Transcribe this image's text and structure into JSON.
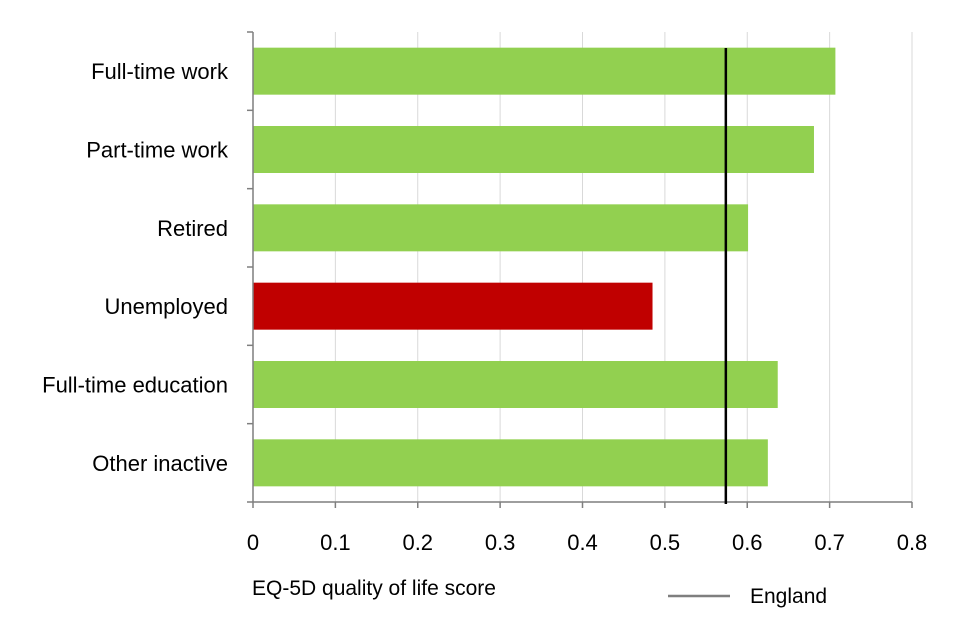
{
  "chart_data": {
    "type": "bar",
    "orientation": "horizontal",
    "categories": [
      "Full-time work",
      "Part-time work",
      "Retired",
      "Unemployed",
      "Full-time education",
      "Other inactive"
    ],
    "values": [
      0.707,
      0.681,
      0.601,
      0.485,
      0.637,
      0.625
    ],
    "bar_colors": [
      "#92d050",
      "#92d050",
      "#92d050",
      "#c00000",
      "#92d050",
      "#92d050"
    ],
    "xlabel": "EQ-5D quality of life score",
    "xlim": [
      0,
      0.8
    ],
    "xticks": [
      0,
      0.1,
      0.2,
      0.3,
      0.4,
      0.5,
      0.6,
      0.7,
      0.8
    ],
    "xtick_labels": [
      "0",
      "0.1",
      "0.2",
      "0.3",
      "0.4",
      "0.5",
      "0.6",
      "0.7",
      "0.8"
    ],
    "grid": "vertical",
    "reference_line": {
      "name": "England",
      "value": 0.574,
      "color": "#000000"
    },
    "legend": {
      "position": "bottom-right",
      "entries": [
        "England"
      ]
    }
  }
}
